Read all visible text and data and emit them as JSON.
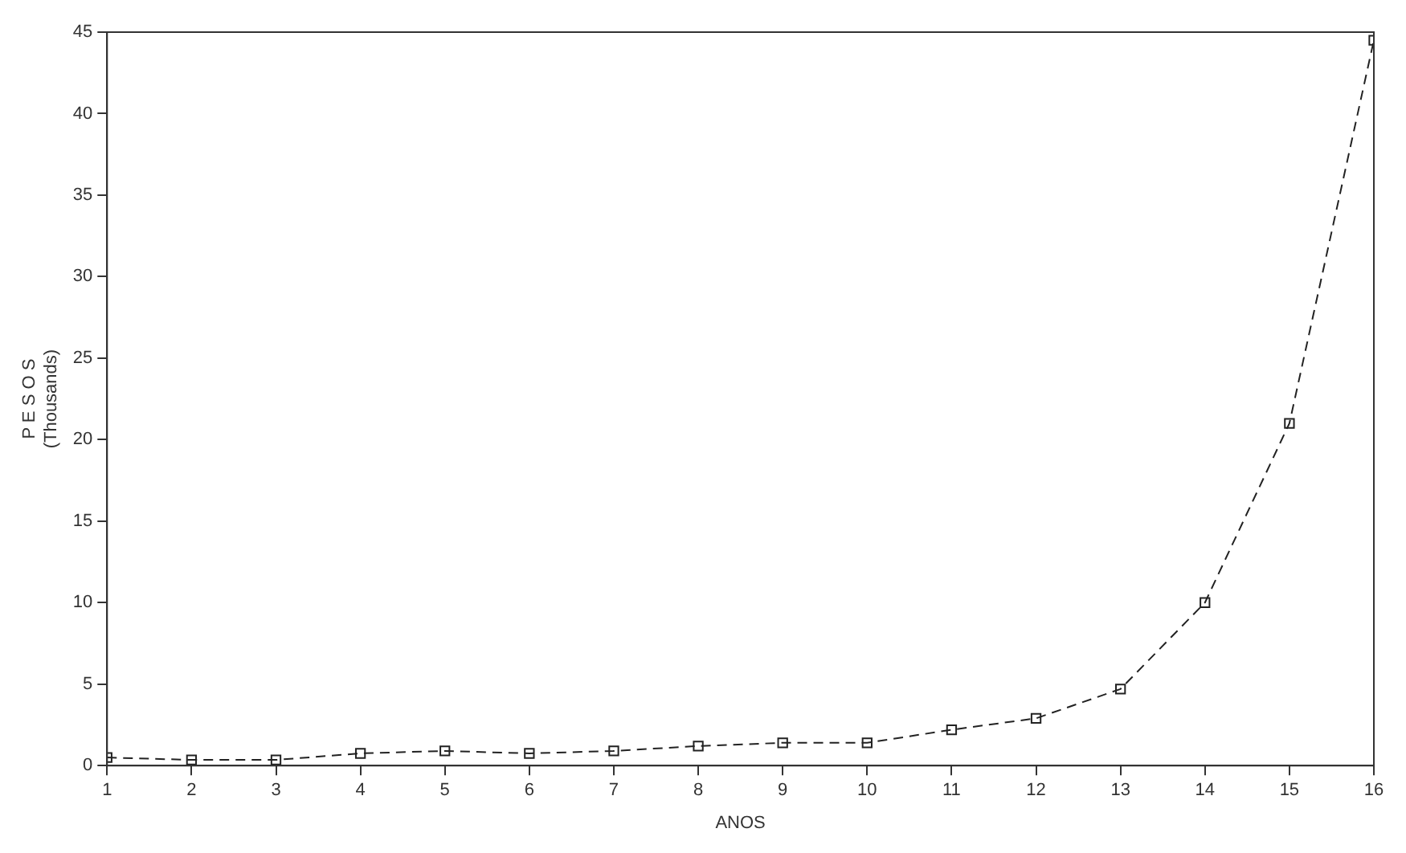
{
  "chart_data": {
    "type": "line",
    "xlabel": "ANOS",
    "ylabel": "P E S O S\n(Thousands)",
    "x": [
      1,
      2,
      3,
      4,
      5,
      6,
      7,
      8,
      9,
      10,
      11,
      12,
      13,
      14,
      15,
      16
    ],
    "series": [
      {
        "color": "#222222",
        "values": [
          0.5,
          0.35,
          0.35,
          0.75,
          0.9,
          0.75,
          0.9,
          1.2,
          1.4,
          1.4,
          2.2,
          2.9,
          4.7,
          10,
          21,
          44.5
        ]
      }
    ],
    "xlim": [
      1,
      16
    ],
    "xticks": [
      1,
      2,
      3,
      4,
      5,
      6,
      7,
      8,
      9,
      10,
      11,
      12,
      13,
      14,
      15,
      16
    ],
    "ylim": [
      0,
      45
    ],
    "yticks": [
      0,
      5,
      10,
      15,
      20,
      25,
      30,
      35,
      40,
      45
    ],
    "grid": false,
    "legend": false,
    "marker": "square",
    "line_style": "dashed"
  }
}
